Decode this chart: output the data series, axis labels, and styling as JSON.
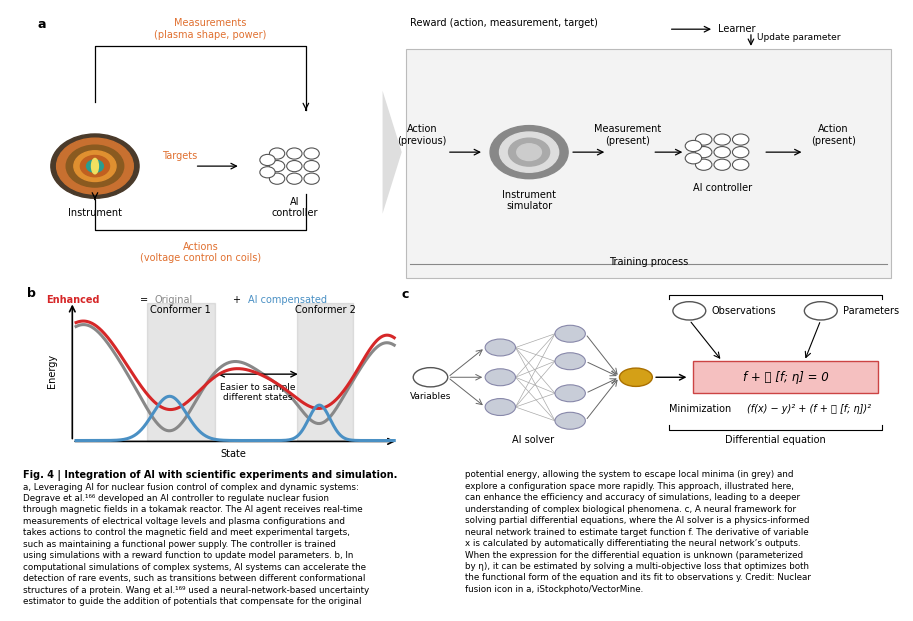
{
  "bg_color": "#ffffff",
  "red_color": "#d62728",
  "blue_color": "#4a90c4",
  "gray_color": "#888888",
  "dark_gray": "#555555",
  "node_color_fill": "#c8cdd8",
  "node_color_edge": "#8888aa",
  "gold_color": "#d4a017",
  "pink_box_facecolor": "#f5c0c0",
  "pink_box_edgecolor": "#cc4444",
  "orange_color": "#e07030",
  "teal_color": "#2a9d8f",
  "panel_a_label": "a",
  "panel_b_label": "b",
  "panel_c_label": "c",
  "measurements_text": "Measurements\n(plasma shape, power)",
  "targets_text": "Targets",
  "actions_text": "Actions\n(voltage control on coils)",
  "instrument_text": "Instrument",
  "ai_controller_text": "AI\ncontroller",
  "reward_text": "Reward (action, measurement, target)",
  "learner_text": "Learner",
  "update_text": "Update parameter",
  "action_prev_text": "Action\n(previous)",
  "instrument_sim_text": "Instrument\nsimulator",
  "measurement_text": "Measurement\n(present)",
  "ai_ctrl_text": "AI controller",
  "action_pres_text": "Action\n(present)",
  "training_text": "Training process",
  "legend_enhanced": "Enhanced",
  "legend_original": "Original",
  "legend_ai": "AI compensated",
  "conformer1": "Conformer 1",
  "conformer2": "Conformer 2",
  "xlabel": "State",
  "ylabel": "Energy",
  "arrow_text": "Easier to sample\ndifferent states",
  "variables_text": "Variables",
  "ai_solver_text": "AI solver",
  "diff_eq_text": "Differential equation",
  "observations_text": "Observations",
  "parameters_text": "Parameters",
  "minimization_text": "Minimization",
  "min_formula": "(f(x) − y)² + (f + 픣 [f; η])²",
  "eq_box_text": "f + 픣 [f; η] = 0",
  "cap_bold": "Fig. 4 | Integration of AI with scientific experiments and simulation.",
  "cap_left": "a, Leveraging AI for nuclear fusion control of complex and dynamic systems:\nDegrave et al.¹⁶⁶ developed an AI controller to regulate nuclear fusion\nthrough magnetic fields in a tokamak reactor. The AI agent receives real-time\nmeasurements of electrical voltage levels and plasma configurations and\ntakes actions to control the magnetic field and meet experimental targets,\nsuch as maintaining a functional power supply. The controller is trained\nusing simulations with a reward function to update model parameters. b, In\ncomputational simulations of complex systems, AI systems can accelerate the\ndetection of rare events, such as transitions between different conformational\nstructures of a protein. Wang et al.¹⁶⁹ used a neural-network-based uncertainty\nestimator to guide the addition of potentials that compensate for the original",
  "cap_right": "potential energy, allowing the system to escape local minima (in grey) and\nexplore a configuration space more rapidly. This approach, illustrated here,\ncan enhance the efficiency and accuracy of simulations, leading to a deeper\nunderstanding of complex biological phenomena. c, A neural framework for\nsolving partial differential equations, where the AI solver is a physics-informed\nneural network trained to estimate target function f. The derivative of variable\nx is calculated by automatically differentiating the neural network’s outputs.\nWhen the expression for the differential equation is unknown (parameterized\nby η), it can be estimated by solving a multi-objective loss that optimizes both\nthe functional form of the equation and its fit to observations y. Credit: Nuclear\nfusion icon in a, iStockphoto/VectorMine."
}
